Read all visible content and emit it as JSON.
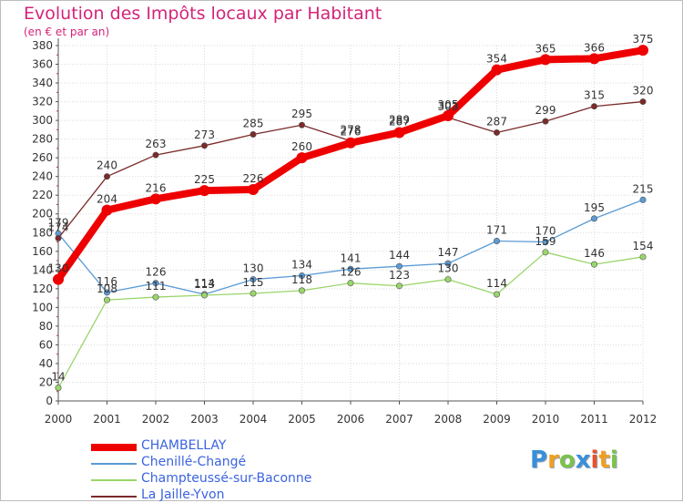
{
  "title": "Evolution des Impôts locaux par Habitant",
  "subtitle": "(en € et par an)",
  "chart_data": {
    "type": "line",
    "title": "Evolution des Impôts locaux par Habitant",
    "subtitle": "(en € et par an)",
    "xlabel": "",
    "ylabel": "",
    "x": [
      2000,
      2001,
      2002,
      2003,
      2004,
      2005,
      2006,
      2007,
      2008,
      2009,
      2010,
      2011,
      2012
    ],
    "x_tick_labels": [
      "2000",
      "2001",
      "2002",
      "2003",
      "2004",
      "2005",
      "2006",
      "2007",
      "2008",
      "2009",
      "2010",
      "2011",
      "2012"
    ],
    "ylim": [
      0,
      380
    ],
    "y_ticks": [
      0,
      20,
      40,
      60,
      80,
      100,
      120,
      140,
      160,
      180,
      200,
      220,
      240,
      260,
      280,
      300,
      320,
      340,
      360,
      380
    ],
    "grid": true,
    "legend_position": "bottom-left",
    "series": [
      {
        "name": "CHAMBELLAY",
        "color": "#ee0000",
        "emphasis": true,
        "values": [
          130,
          204,
          216,
          225,
          226,
          260,
          276,
          287,
          305,
          354,
          365,
          366,
          375
        ]
      },
      {
        "name": "Chenillé-Changé",
        "color": "#5b9bd5",
        "emphasis": false,
        "values": [
          179,
          116,
          126,
          114,
          130,
          134,
          141,
          144,
          147,
          171,
          170,
          195,
          215
        ]
      },
      {
        "name": "Champteussé-sur-Baconne",
        "color": "#9ad66b",
        "emphasis": false,
        "values": [
          14,
          108,
          111,
          113,
          115,
          118,
          126,
          123,
          130,
          114,
          159,
          146,
          154
        ]
      },
      {
        "name": "La Jaille-Yvon",
        "color": "#7b2a2a",
        "emphasis": false,
        "values": [
          174,
          240,
          263,
          273,
          285,
          295,
          278,
          289,
          303,
          287,
          299,
          315,
          320
        ]
      }
    ]
  },
  "logo": {
    "letters": [
      "P",
      "r",
      "o",
      "x",
      "i",
      "t",
      "i"
    ],
    "colors": [
      "#3a8fd9",
      "#f0a020",
      "#7dc24b",
      "#3a8fd9",
      "#e8532b",
      "#f0a020",
      "#7dc24b"
    ]
  }
}
